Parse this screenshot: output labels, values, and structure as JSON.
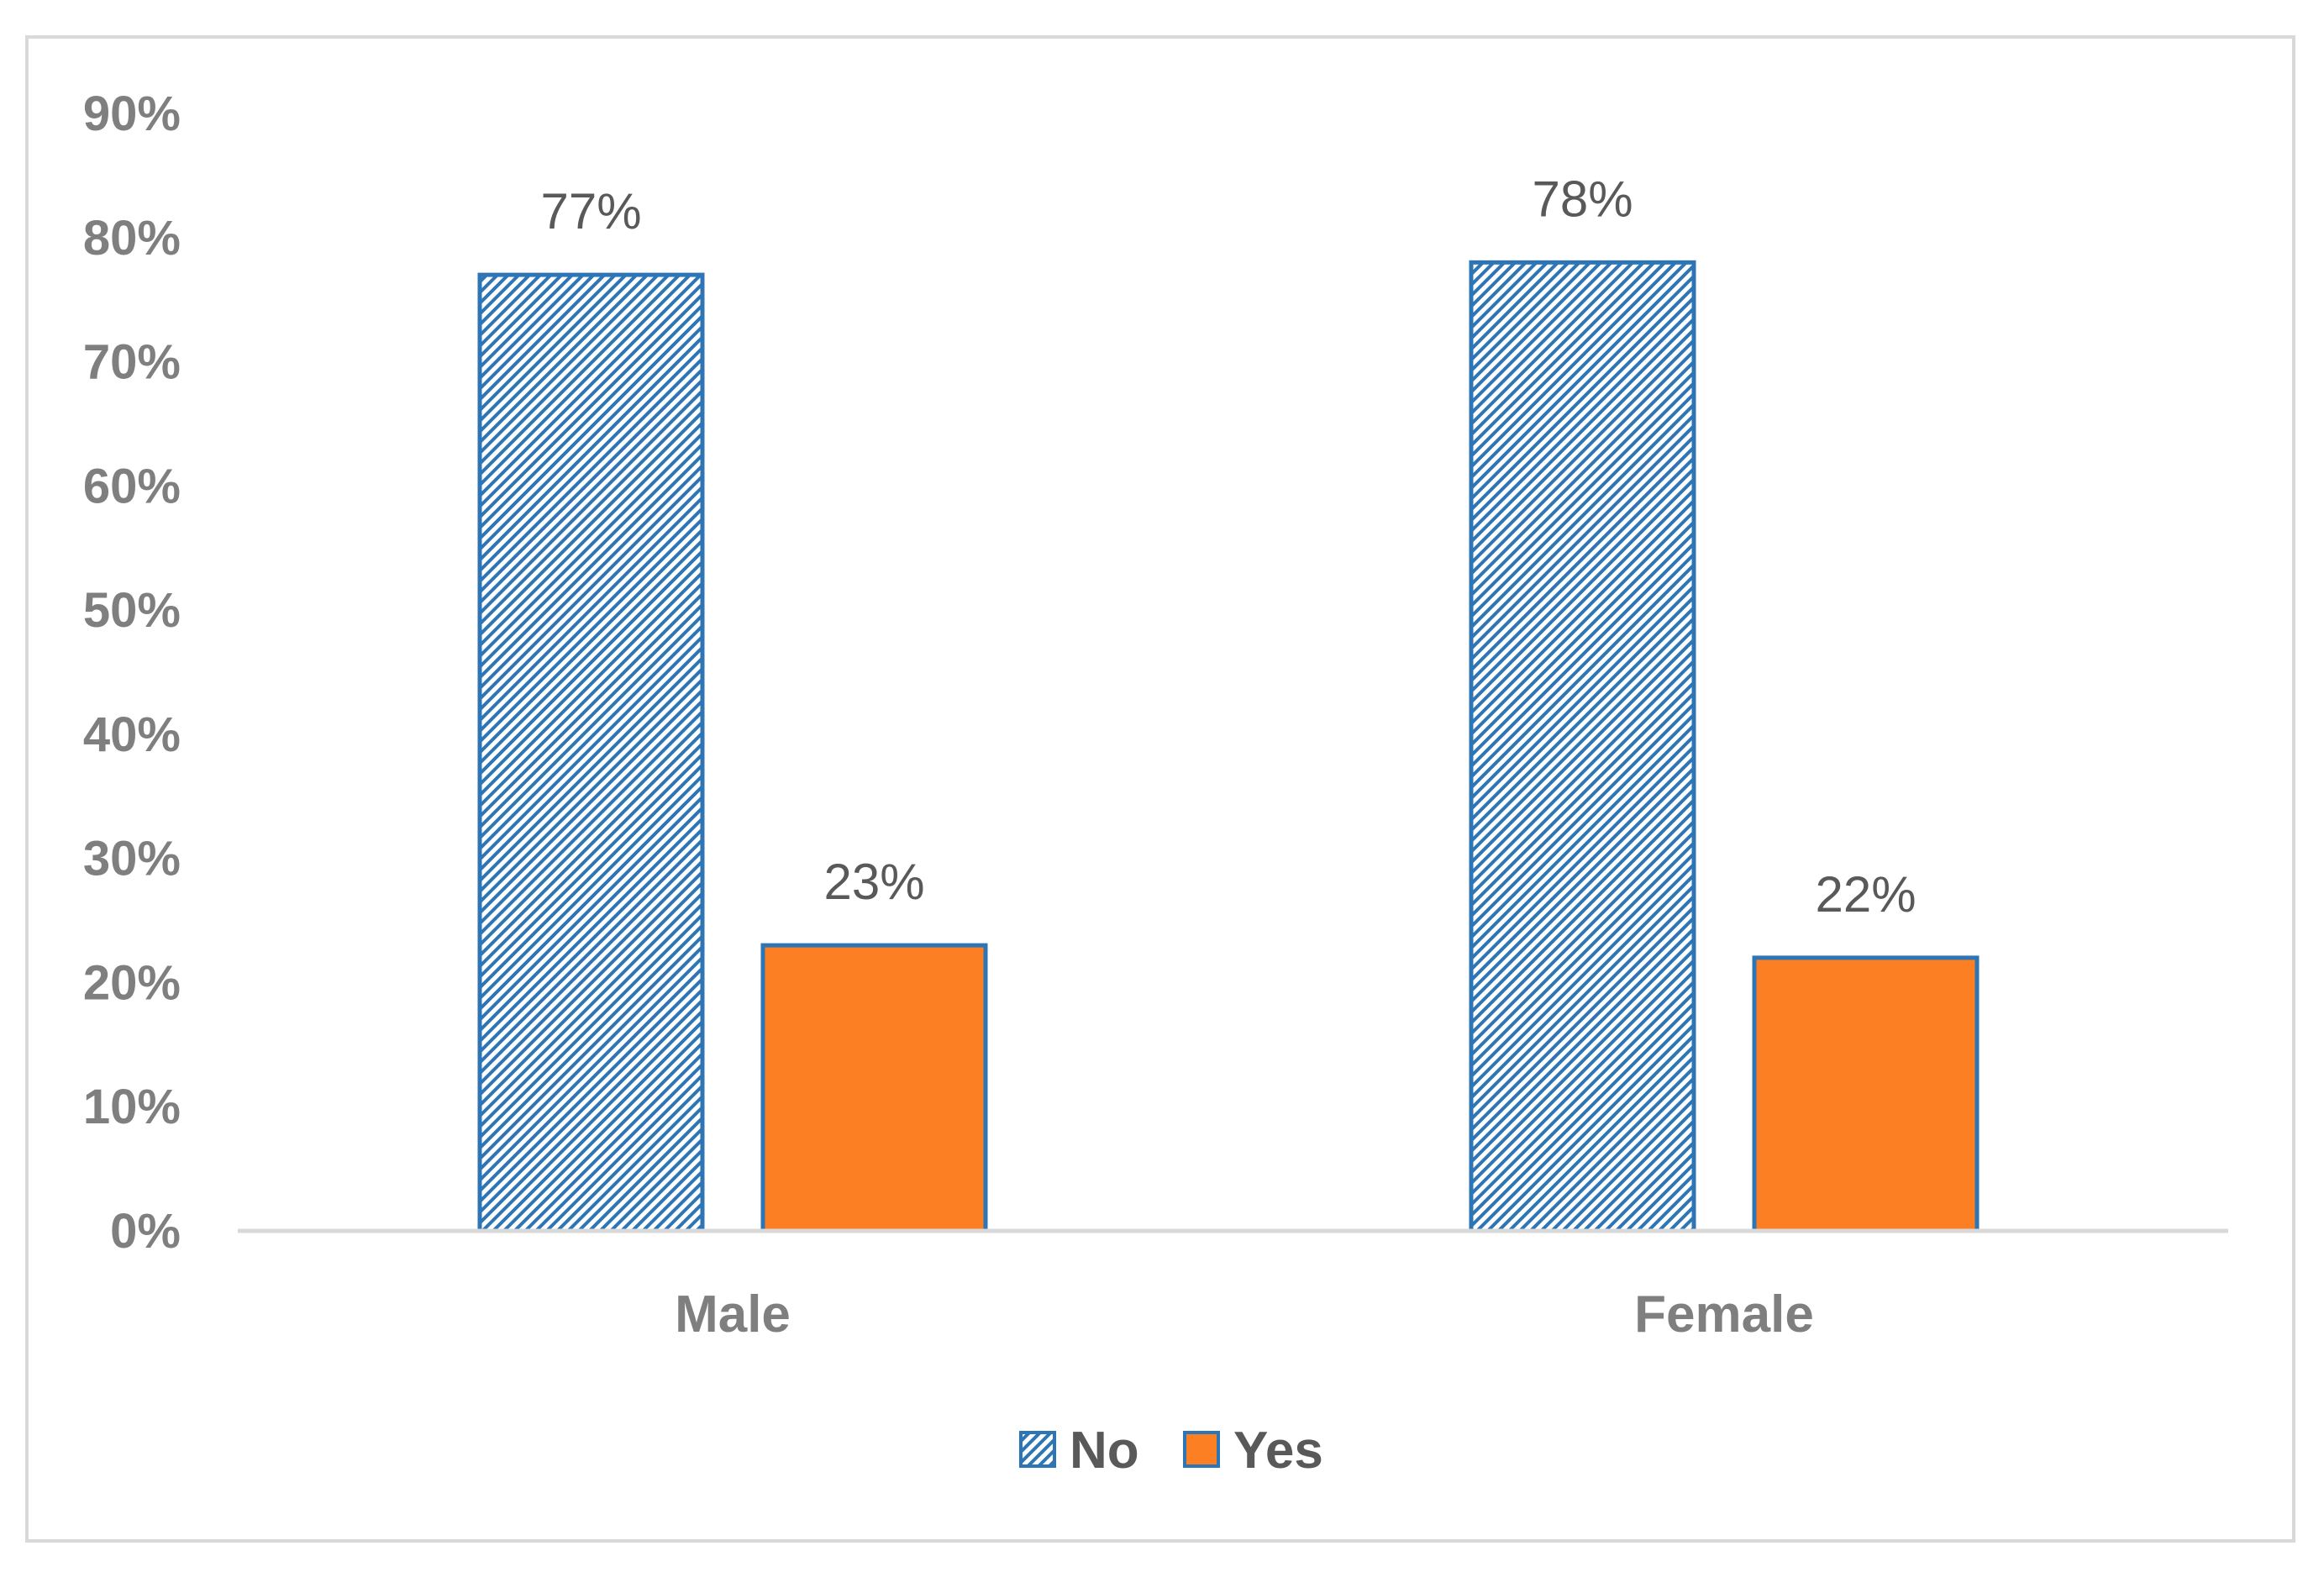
{
  "chart_data": {
    "type": "bar",
    "categories": [
      "Male",
      "Female"
    ],
    "series": [
      {
        "name": "No",
        "values": [
          77,
          78
        ],
        "labels": [
          "77%",
          "78%"
        ],
        "color": "#2e75b6",
        "pattern": "diagonal-hatch"
      },
      {
        "name": "Yes",
        "values": [
          23,
          22
        ],
        "labels": [
          "23%",
          "22%"
        ],
        "color": "#fd7f23",
        "border": "#2e75b6"
      }
    ],
    "ylim": [
      0,
      90
    ],
    "yticks": [
      0,
      10,
      20,
      30,
      40,
      50,
      60,
      70,
      80,
      90
    ],
    "ytick_labels": [
      "0%",
      "10%",
      "20%",
      "30%",
      "40%",
      "50%",
      "60%",
      "70%",
      "80%",
      "90%"
    ],
    "title": "",
    "xlabel": "",
    "ylabel": "",
    "grid": false,
    "legend": "bottom-center",
    "colors": {
      "tick_text": "#7f7f7f",
      "label_text": "#595959",
      "axis_line": "#d9d9d9",
      "frame": "#d9d9d9"
    }
  }
}
